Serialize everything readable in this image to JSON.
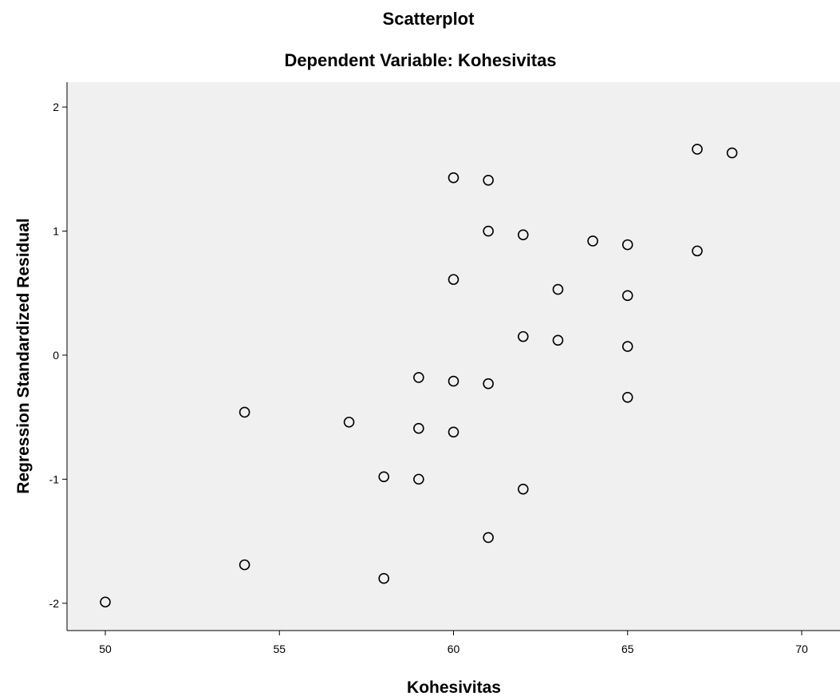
{
  "chart_data": {
    "type": "scatter",
    "title": "Scatterplot",
    "subtitle": "Dependent Variable: Kohesivitas",
    "xlabel": "Kohesivitas",
    "ylabel": "Regression Standardized Residual",
    "xlim": [
      48.9,
      71.1
    ],
    "ylim": [
      -2.22,
      2.2
    ],
    "xticks": [
      50,
      55,
      60,
      65,
      70
    ],
    "yticks": [
      -2,
      -1,
      0,
      1,
      2
    ],
    "xtick_labels": [
      "50",
      "55",
      "60",
      "65",
      "70"
    ],
    "ytick_labels": [
      "-2",
      "-1",
      "0",
      "1",
      "2"
    ],
    "grid": false,
    "colors": {
      "plot_background": "#f0f0f0",
      "page_background": "#ffffff",
      "marker_stroke": "#000000",
      "axis": "#000000"
    },
    "marker": "open-circle",
    "points": [
      {
        "x": 50,
        "y": -1.99
      },
      {
        "x": 54,
        "y": -1.69
      },
      {
        "x": 54,
        "y": -0.46
      },
      {
        "x": 57,
        "y": -0.54
      },
      {
        "x": 58,
        "y": -0.98
      },
      {
        "x": 58,
        "y": -1.8
      },
      {
        "x": 59,
        "y": -0.18
      },
      {
        "x": 59,
        "y": -0.59
      },
      {
        "x": 59,
        "y": -1.0
      },
      {
        "x": 60,
        "y": 1.43
      },
      {
        "x": 60,
        "y": 0.61
      },
      {
        "x": 60,
        "y": -0.21
      },
      {
        "x": 60,
        "y": -0.62
      },
      {
        "x": 61,
        "y": 1.41
      },
      {
        "x": 61,
        "y": 1.0
      },
      {
        "x": 61,
        "y": -0.23
      },
      {
        "x": 61,
        "y": -1.47
      },
      {
        "x": 62,
        "y": 0.97
      },
      {
        "x": 62,
        "y": 0.15
      },
      {
        "x": 62,
        "y": -1.08
      },
      {
        "x": 63,
        "y": 0.53
      },
      {
        "x": 63,
        "y": 0.12
      },
      {
        "x": 64,
        "y": 0.92
      },
      {
        "x": 65,
        "y": 0.89
      },
      {
        "x": 65,
        "y": 0.48
      },
      {
        "x": 65,
        "y": 0.07
      },
      {
        "x": 65,
        "y": -0.34
      },
      {
        "x": 67,
        "y": 1.66
      },
      {
        "x": 67,
        "y": 0.84
      },
      {
        "x": 68,
        "y": 1.63
      }
    ]
  }
}
